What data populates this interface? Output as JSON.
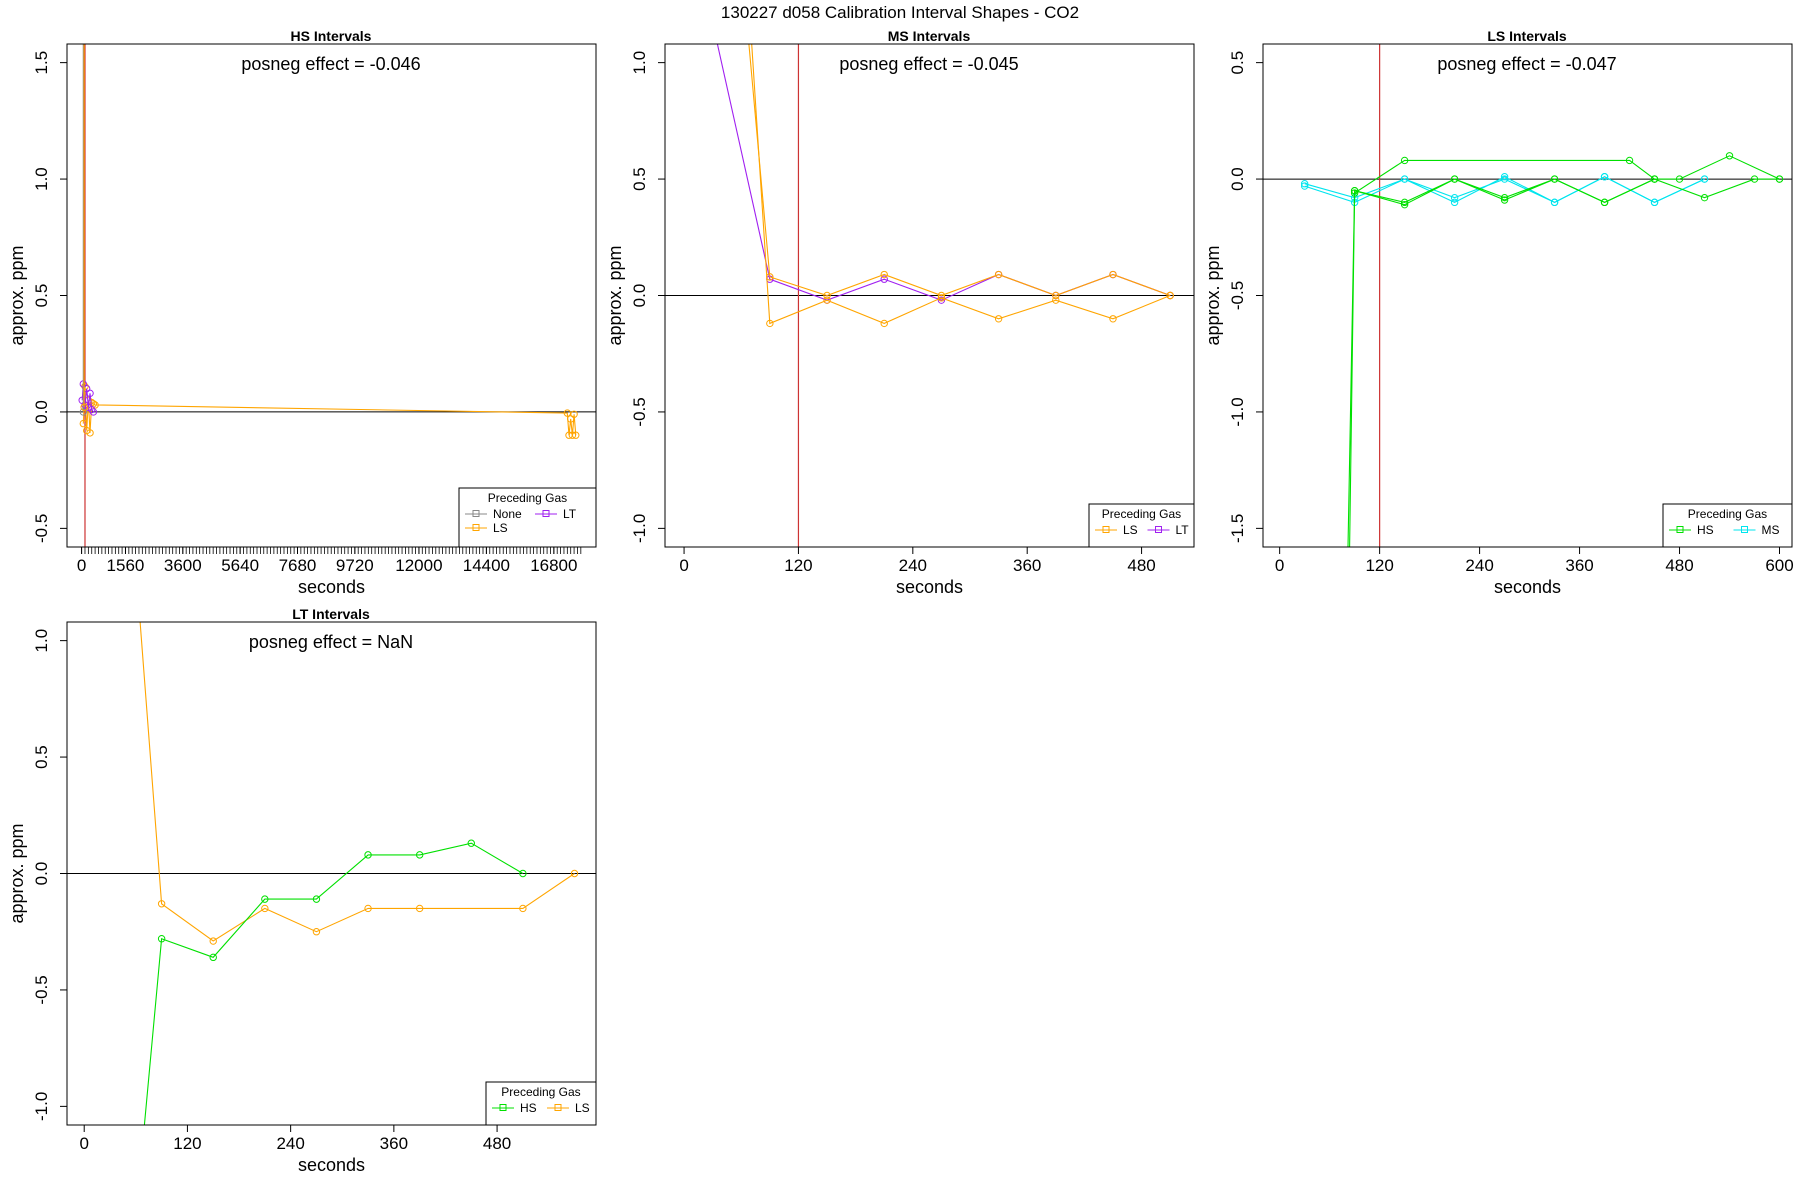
{
  "figure_title": "130227  d058   Calibration Interval Shapes - CO2",
  "colors": {
    "None": "#888888",
    "LS": "#FFA500",
    "LT": "#A020F0",
    "HS": "#00E000",
    "MS": "#00E5EE",
    "vline": "#CD3333",
    "zero": "#000000"
  },
  "chart_data": [
    {
      "type": "line",
      "id": "hs",
      "title": "HS Intervals",
      "effect_label": "posneg effect = -0.046",
      "xlabel": "seconds",
      "ylabel": "approx. ppm",
      "xlim": [
        -520,
        18300
      ],
      "ylim": [
        -0.58,
        1.58
      ],
      "yticks": [
        -0.5,
        0.0,
        0.5,
        1.0,
        1.5
      ],
      "ytick_labels": [
        "-0.5",
        "0.0",
        "0.5",
        "1.0",
        "1.5"
      ],
      "xticks": [
        0,
        1560,
        3600,
        5640,
        7680,
        9720,
        12000,
        14400,
        16800
      ],
      "xtick_labels": [
        "0",
        "1560",
        "3600",
        "5640",
        "7680",
        "9720",
        "12000",
        "14400",
        "16800"
      ],
      "minor_xticks": {
        "start": 0,
        "end": 17760,
        "step": 120
      },
      "vline": 120,
      "hline": 0,
      "legend": {
        "title": "Preceding Gas",
        "entries": [
          "None",
          "LT",
          "LS"
        ]
      },
      "series": [
        {
          "name": "LS",
          "x": [
            60,
            120,
            180,
            240,
            300,
            360,
            420,
            480,
            17280,
            17340,
            17400,
            17460,
            17520,
            17580
          ],
          "y": [
            -0.05,
            0.11,
            -0.08,
            0.05,
            -0.09,
            0.04,
            0.035,
            0.03,
            -0.005,
            -0.1,
            -0.03,
            -0.1,
            -0.01,
            -0.1
          ]
        },
        {
          "name": "LT",
          "x": [
            20,
            60,
            120,
            180,
            240,
            300,
            360,
            420
          ],
          "y": [
            0.05,
            0.12,
            0.03,
            0.1,
            0.02,
            0.08,
            0.01,
            0.0
          ]
        },
        {
          "name": "None",
          "x": [
            60,
            60
          ],
          "y": [
            1.58,
            0.0
          ]
        },
        {
          "name": "LS",
          "x": [
            90,
            90
          ],
          "y": [
            1.58,
            0.02
          ]
        }
      ]
    },
    {
      "type": "line",
      "id": "ms",
      "title": "MS Intervals",
      "effect_label": "posneg effect = -0.045",
      "xlabel": "seconds",
      "ylabel": "approx. ppm",
      "xlim": [
        -20,
        535
      ],
      "ylim": [
        -1.08,
        1.08
      ],
      "yticks": [
        -1.0,
        -0.5,
        0.0,
        0.5,
        1.0
      ],
      "ytick_labels": [
        "-1.0",
        "-0.5",
        "0.0",
        "0.5",
        "1.0"
      ],
      "xticks": [
        0,
        120,
        240,
        360,
        480
      ],
      "xtick_labels": [
        "0",
        "120",
        "240",
        "360",
        "480"
      ],
      "vline": 120,
      "hline": 0,
      "legend": {
        "title": "Preceding Gas",
        "entries": [
          "LS",
          "LT"
        ]
      },
      "series": [
        {
          "name": "LT",
          "x": [
            35,
            90,
            150,
            210,
            270,
            330,
            390,
            450,
            510
          ],
          "y": [
            1.08,
            0.07,
            -0.02,
            0.07,
            -0.02,
            0.09,
            0.0,
            0.09,
            0.0
          ]
        },
        {
          "name": "LS",
          "x": [
            68,
            90,
            150,
            210,
            270,
            330,
            390,
            450,
            510
          ],
          "y": [
            1.08,
            0.08,
            0.0,
            0.09,
            0.0,
            0.09,
            0.0,
            0.09,
            0.0
          ]
        },
        {
          "name": "LS",
          "x": [
            71,
            90,
            150,
            210,
            270,
            330,
            390,
            450,
            510
          ],
          "y": [
            1.08,
            -0.12,
            -0.02,
            -0.12,
            -0.01,
            -0.1,
            -0.02,
            -0.1,
            0.0
          ]
        }
      ]
    },
    {
      "type": "line",
      "id": "ls",
      "title": "LS Intervals",
      "effect_label": "posneg effect = -0.047",
      "xlabel": "seconds",
      "ylabel": "approx. ppm",
      "xlim": [
        -20,
        615
      ],
      "ylim": [
        -1.58,
        0.58
      ],
      "yticks": [
        -1.5,
        -1.0,
        -0.5,
        0.0,
        0.5
      ],
      "ytick_labels": [
        "-1.5",
        "-1.0",
        "-0.5",
        "0.0",
        "0.5"
      ],
      "xticks": [
        0,
        120,
        240,
        360,
        480,
        600
      ],
      "xtick_labels": [
        "0",
        "120",
        "240",
        "360",
        "480",
        "600"
      ],
      "vline": 120,
      "hline": 0,
      "legend": {
        "title": "Preceding Gas",
        "entries": [
          "HS",
          "MS"
        ]
      },
      "series": [
        {
          "name": "MS",
          "x": [
            30,
            90,
            150,
            210,
            270,
            330,
            390,
            450,
            510
          ],
          "y": [
            -0.02,
            -0.08,
            0.0,
            -0.1,
            0.01,
            -0.1,
            0.01,
            -0.1,
            0.0
          ]
        },
        {
          "name": "MS",
          "x": [
            30,
            90,
            150,
            210,
            270,
            330,
            390,
            450,
            510
          ],
          "y": [
            -0.03,
            -0.1,
            0.0,
            -0.08,
            0.0,
            -0.1,
            0.01,
            -0.1,
            0.0
          ]
        },
        {
          "name": "HS",
          "x": [
            82,
            90,
            150,
            210,
            270,
            330,
            390,
            450,
            510,
            570,
            600
          ],
          "y": [
            -1.58,
            -0.05,
            -0.1,
            0.0,
            -0.08,
            0.0,
            -0.1,
            0.0,
            -0.08,
            0.0,
            0.0
          ]
        },
        {
          "name": "HS",
          "x": [
            84,
            90,
            150,
            420,
            450,
            480,
            540,
            600
          ],
          "y": [
            -1.58,
            -0.06,
            0.08,
            0.08,
            0.0,
            0.0,
            0.1,
            0.0
          ]
        },
        {
          "name": "HS",
          "x": [
            90,
            150,
            210,
            270,
            330,
            390,
            450
          ],
          "y": [
            -0.05,
            -0.11,
            0.0,
            -0.09,
            0.0,
            -0.1,
            0.0
          ]
        }
      ]
    },
    {
      "type": "line",
      "id": "lt",
      "title": "LT Intervals",
      "effect_label": "posneg effect = NaN",
      "xlabel": "seconds",
      "ylabel": "approx. ppm",
      "xlim": [
        -20,
        595
      ],
      "ylim": [
        -1.08,
        1.08
      ],
      "yticks": [
        -1.0,
        -0.5,
        0.0,
        0.5,
        1.0
      ],
      "ytick_labels": [
        "-1.0",
        "-0.5",
        "0.0",
        "0.5",
        "1.0"
      ],
      "xticks": [
        0,
        120,
        240,
        360,
        480
      ],
      "xtick_labels": [
        "0",
        "120",
        "240",
        "360",
        "480"
      ],
      "vline": null,
      "hline": 0,
      "legend": {
        "title": "Preceding Gas",
        "entries": [
          "HS",
          "LS"
        ]
      },
      "series": [
        {
          "name": "LS",
          "x": [
            65,
            90,
            150,
            210,
            270,
            330,
            390,
            510,
            570
          ],
          "y": [
            1.08,
            -0.13,
            -0.29,
            -0.15,
            -0.25,
            -0.15,
            -0.15,
            -0.15,
            0.0
          ]
        },
        {
          "name": "HS",
          "x": [
            70,
            90,
            150,
            210,
            270,
            330,
            390,
            450,
            510
          ],
          "y": [
            -1.08,
            -0.28,
            -0.36,
            -0.11,
            -0.11,
            0.08,
            0.08,
            0.13,
            0.0
          ]
        }
      ]
    }
  ]
}
